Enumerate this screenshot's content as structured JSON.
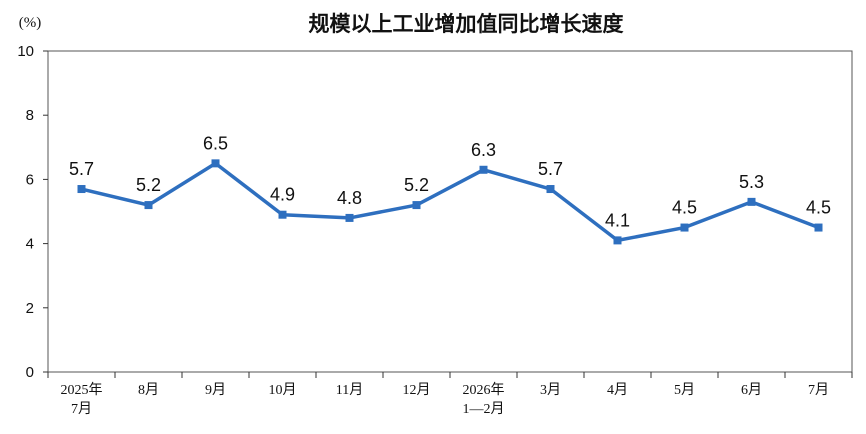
{
  "page": {
    "title": "规模以上工业增加值同比增长速度",
    "unit": "(%)"
  },
  "colors": {
    "series_line": "#2e6fbf",
    "series_marker": "#2e6fbf",
    "text": "#111111",
    "axis": "#333333"
  },
  "chart_data": {
    "type": "line",
    "title": "规模以上工业增加值同比增长速度",
    "xlabel": "",
    "ylabel": "(%)",
    "ylim": [
      0,
      10
    ],
    "yticks": [
      0,
      2,
      4,
      6,
      8,
      10
    ],
    "grid": false,
    "legend": "none",
    "categories": [
      [
        "2025年",
        "7月"
      ],
      [
        "8月"
      ],
      [
        "9月"
      ],
      [
        "10月"
      ],
      [
        "11月"
      ],
      [
        "12月"
      ],
      [
        "2026年",
        "1—2月"
      ],
      [
        "3月"
      ],
      [
        "4月"
      ],
      [
        "5月"
      ],
      [
        "6月"
      ],
      [
        "7月"
      ]
    ],
    "series": [
      {
        "values": [
          5.7,
          5.2,
          6.5,
          4.9,
          4.8,
          5.2,
          6.3,
          5.7,
          4.1,
          4.5,
          5.3,
          4.5
        ],
        "labels": [
          "5.7",
          "5.2",
          "6.5",
          "4.9",
          "4.8",
          "5.2",
          "6.3",
          "5.7",
          "4.1",
          "4.5",
          "5.3",
          "4.5"
        ]
      }
    ]
  }
}
